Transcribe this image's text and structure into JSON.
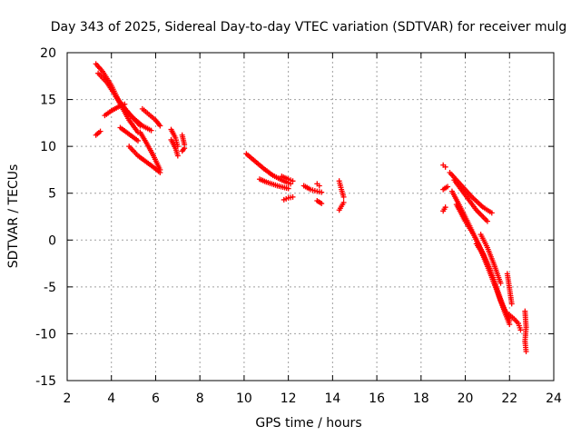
{
  "colors": {
    "series": "#ff0000",
    "grid": "#a0a0a0",
    "frame": "#000000",
    "background": "#ffffff"
  },
  "chart_data": {
    "type": "scatter",
    "title": "Day 343 of 2025, Sidereal Day-to-day VTEC variation (SDTVAR) for receiver mulg",
    "xlabel": "GPS time / hours",
    "ylabel": "SDTVAR / TECUs",
    "xlim": [
      2,
      24
    ],
    "ylim": [
      -15,
      20
    ],
    "xticks": [
      "2",
      "4",
      "6",
      "8",
      "10",
      "12",
      "14",
      "16",
      "18",
      "20",
      "22",
      "24"
    ],
    "yticks": [
      "-15",
      "-10",
      "-5",
      "0",
      "5",
      "10",
      "15",
      "20"
    ],
    "grid": true,
    "marker": "plus",
    "series": [
      {
        "name": "SDTVAR",
        "arcs": [
          {
            "x": [
              3.3,
              3.6,
              4.0,
              4.4,
              4.8,
              5.2
            ],
            "y": [
              18.8,
              18.0,
              16.5,
              14.5,
              12.8,
              11.5
            ]
          },
          {
            "x": [
              3.4,
              3.8,
              4.3,
              4.8,
              5.3
            ],
            "y": [
              17.8,
              16.8,
              15.0,
              13.5,
              12.2
            ]
          },
          {
            "x": [
              3.3,
              3.5
            ],
            "y": [
              11.2,
              11.6
            ]
          },
          {
            "x": [
              3.7,
              4.0,
              4.3,
              4.6
            ],
            "y": [
              13.3,
              13.8,
              14.2,
              14.5
            ]
          },
          {
            "x": [
              4.2,
              4.6,
              5.0,
              5.4,
              5.8
            ],
            "y": [
              15.3,
              14.0,
              13.0,
              12.2,
              11.7
            ]
          },
          {
            "x": [
              4.4,
              4.8,
              5.2
            ],
            "y": [
              12.0,
              11.3,
              10.6
            ]
          },
          {
            "x": [
              4.8,
              5.2,
              5.6,
              6.0,
              6.2
            ],
            "y": [
              10.0,
              9.0,
              8.3,
              7.6,
              7.2
            ]
          },
          {
            "x": [
              5.4,
              5.7,
              6.0,
              6.2
            ],
            "y": [
              14.0,
              13.4,
              12.8,
              12.2
            ]
          },
          {
            "x": [
              5.3,
              5.6,
              5.9,
              6.2
            ],
            "y": [
              11.5,
              10.3,
              9.0,
              7.5
            ]
          },
          {
            "x": [
              6.7,
              6.9,
              7.0
            ],
            "y": [
              11.8,
              10.9,
              10.0
            ]
          },
          {
            "x": [
              6.7,
              6.9,
              7.0
            ],
            "y": [
              10.7,
              9.8,
              9.0
            ]
          },
          {
            "x": [
              7.2,
              7.3
            ],
            "y": [
              11.2,
              10.2
            ]
          },
          {
            "x": [
              7.2,
              7.3
            ],
            "y": [
              9.5,
              9.8
            ]
          },
          {
            "x": [
              10.1,
              10.5,
              10.9,
              11.3,
              11.7,
              12.0,
              12.1
            ],
            "y": [
              9.2,
              8.4,
              7.6,
              6.9,
              6.4,
              6.1,
              6.0
            ]
          },
          {
            "x": [
              10.7,
              11.0,
              11.5,
              12.0
            ],
            "y": [
              6.5,
              6.2,
              5.8,
              5.5
            ]
          },
          {
            "x": [
              11.8,
              12.0,
              12.2
            ],
            "y": [
              4.3,
              4.5,
              4.6
            ]
          },
          {
            "x": [
              11.7,
              12.0,
              12.2
            ],
            "y": [
              6.8,
              6.5,
              6.3
            ]
          },
          {
            "x": [
              12.7,
              13.0,
              13.3,
              13.5
            ],
            "y": [
              5.8,
              5.4,
              5.2,
              5.1
            ]
          },
          {
            "x": [
              13.3,
              13.5
            ],
            "y": [
              4.2,
              3.9
            ]
          },
          {
            "x": [
              13.3,
              13.4
            ],
            "y": [
              6.0,
              5.8
            ]
          },
          {
            "x": [
              14.3,
              14.4,
              14.5
            ],
            "y": [
              6.3,
              5.4,
              4.6
            ]
          },
          {
            "x": [
              14.3,
              14.4,
              14.5
            ],
            "y": [
              3.2,
              3.6,
              4.0
            ]
          },
          {
            "x": [
              19.0,
              19.1
            ],
            "y": [
              8.0,
              7.8
            ]
          },
          {
            "x": [
              19.0,
              19.2
            ],
            "y": [
              5.4,
              5.7
            ]
          },
          {
            "x": [
              19.0,
              19.1
            ],
            "y": [
              3.1,
              3.5
            ]
          },
          {
            "x": [
              19.3,
              19.8,
              20.3,
              20.8,
              21.2
            ],
            "y": [
              7.2,
              5.9,
              4.6,
              3.5,
              2.9
            ]
          },
          {
            "x": [
              19.5,
              20.0,
              20.5,
              21.0
            ],
            "y": [
              6.4,
              4.8,
              3.2,
              2.0
            ]
          },
          {
            "x": [
              19.4,
              19.8,
              20.2,
              20.6,
              21.0,
              21.4,
              21.8,
              22.0
            ],
            "y": [
              5.2,
              3.4,
              1.5,
              -0.5,
              -2.8,
              -5.2,
              -7.8,
              -9.0
            ]
          },
          {
            "x": [
              19.6,
              20.0,
              20.4,
              20.8,
              21.2,
              21.6,
              22.0
            ],
            "y": [
              3.8,
              2.0,
              0.5,
              -1.4,
              -3.8,
              -6.5,
              -8.6
            ]
          },
          {
            "x": [
              20.5,
              20.8,
              21.1,
              21.4,
              21.7,
              21.9
            ],
            "y": [
              -0.4,
              -1.5,
              -3.0,
              -5.0,
              -7.0,
              -8.2
            ]
          },
          {
            "x": [
              20.7,
              21.0,
              21.3,
              21.6
            ],
            "y": [
              0.6,
              -0.8,
              -2.6,
              -4.6
            ]
          },
          {
            "x": [
              21.9,
              22.1
            ],
            "y": [
              -3.6,
              -6.8
            ]
          },
          {
            "x": [
              21.9,
              22.2,
              22.4,
              22.5
            ],
            "y": [
              -7.8,
              -8.4,
              -8.9,
              -9.6
            ]
          },
          {
            "x": [
              22.7,
              22.75,
              22.7,
              22.75
            ],
            "y": [
              -7.6,
              -9.3,
              -10.8,
              -11.9
            ]
          }
        ]
      }
    ]
  }
}
